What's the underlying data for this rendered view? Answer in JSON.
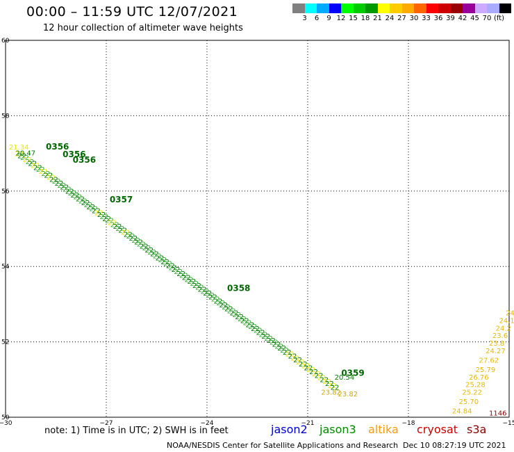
{
  "title": "00:00 – 11:59 UTC 12/07/2021",
  "subtitle": "12 hour collection of altimeter wave heights",
  "legend": {
    "colors": [
      "#808080",
      "#00ffff",
      "#00aaff",
      "#0000ff",
      "#00ff00",
      "#00cc00",
      "#009900",
      "#ffff00",
      "#ffcc00",
      "#ffaa00",
      "#ff6600",
      "#ff0000",
      "#cc0000",
      "#990000",
      "#990099",
      "#ccaaff",
      "#aaaaff",
      "#000000"
    ],
    "labels": [
      "3",
      "6",
      "9",
      "12",
      "15",
      "18",
      "21",
      "24",
      "27",
      "30",
      "33",
      "36",
      "39",
      "42",
      "45",
      "70",
      "(ft)"
    ]
  },
  "note": "note: 1) Time is in UTC; 2) SWH is in feet",
  "satellites": [
    {
      "name": "jason2",
      "color": "#0000cc"
    },
    {
      "name": "jason3",
      "color": "#008800"
    },
    {
      "name": "altika",
      "color": "#ff9900"
    },
    {
      "name": "cryosat",
      "color": "#cc0000"
    },
    {
      "name": "s3a",
      "color": "#880000"
    }
  ],
  "footer_left": "NOAA/NESDIS Center for Satellite Applications and Research",
  "footer_right": "Dec 10 08:27:19 UTC 2021",
  "chart_data": {
    "type": "scatter",
    "xlim": [
      -30,
      -15
    ],
    "ylim": [
      50,
      60
    ],
    "x_ticks": [
      -30,
      -27,
      -24,
      -21,
      -18,
      -15
    ],
    "x_tick_labels": [
      "−30",
      "−27",
      "−24",
      "−21",
      "−18",
      "−15"
    ],
    "y_ticks": [
      50,
      52,
      54,
      56,
      58,
      60
    ],
    "y_tick_labels": [
      "50",
      "52",
      "54",
      "56",
      "58",
      "60"
    ],
    "grid": true,
    "time_labels": [
      {
        "text": "0356",
        "x": -28.8,
        "y": 57.1,
        "color": "#006600"
      },
      {
        "text": "0356",
        "x": -28.3,
        "y": 56.9,
        "color": "#006600"
      },
      {
        "text": "0356",
        "x": -28.0,
        "y": 56.75,
        "color": "#006600"
      },
      {
        "text": "0357",
        "x": -26.9,
        "y": 55.7,
        "color": "#006600"
      },
      {
        "text": "0358",
        "x": -23.4,
        "y": 53.35,
        "color": "#006600"
      },
      {
        "text": "0359",
        "x": -20.0,
        "y": 51.1,
        "color": "#006600"
      }
    ],
    "points": [
      {
        "label": "21.34",
        "x": -29.9,
        "y": 57.1,
        "color": "#e6e600"
      },
      {
        "label": "20.47",
        "x": -29.7,
        "y": 56.95,
        "color": "#007700"
      },
      {
        "label": "20.54",
        "x": -20.2,
        "y": 51.0,
        "color": "#007700"
      },
      {
        "label": "23.82",
        "x": -20.6,
        "y": 50.6,
        "color": "#ccaa00"
      },
      {
        "label": "23.82",
        "x": -20.1,
        "y": 50.55,
        "color": "#ccaa00"
      },
      {
        "label": "24.27",
        "x": -15.7,
        "y": 51.7,
        "color": "#e6b800"
      },
      {
        "label": "27.62",
        "x": -15.9,
        "y": 51.45,
        "color": "#e6b800"
      },
      {
        "label": "25.79",
        "x": -16.0,
        "y": 51.2,
        "color": "#e6b800"
      },
      {
        "label": "26.76",
        "x": -16.2,
        "y": 51.0,
        "color": "#e6b800"
      },
      {
        "label": "25.28",
        "x": -16.3,
        "y": 50.8,
        "color": "#e6b800"
      },
      {
        "label": "25.22",
        "x": -16.4,
        "y": 50.6,
        "color": "#e6b800"
      },
      {
        "label": "25.70",
        "x": -16.5,
        "y": 50.35,
        "color": "#e6b800"
      },
      {
        "label": "24.84",
        "x": -16.7,
        "y": 50.1,
        "color": "#e6b800"
      },
      {
        "label": "1146",
        "x": -15.6,
        "y": 50.05,
        "color": "#880000"
      },
      {
        "label": "24",
        "x": -15.1,
        "y": 52.7,
        "color": "#e6b800"
      },
      {
        "label": "24.1",
        "x": -15.3,
        "y": 52.5,
        "color": "#e6b800"
      },
      {
        "label": "24.2",
        "x": -15.4,
        "y": 52.3,
        "color": "#e6b800"
      },
      {
        "label": "23.6",
        "x": -15.5,
        "y": 52.1,
        "color": "#e6b800"
      },
      {
        "label": "23.8",
        "x": -15.6,
        "y": 51.9,
        "color": "#e6b800"
      }
    ],
    "tracks": [
      {
        "name": "jason3 track",
        "color": "#007700",
        "start": [
          -29.6,
          57.0
        ],
        "end": [
          -20.2,
          50.8
        ],
        "alt_color": "#e6e600"
      }
    ]
  }
}
